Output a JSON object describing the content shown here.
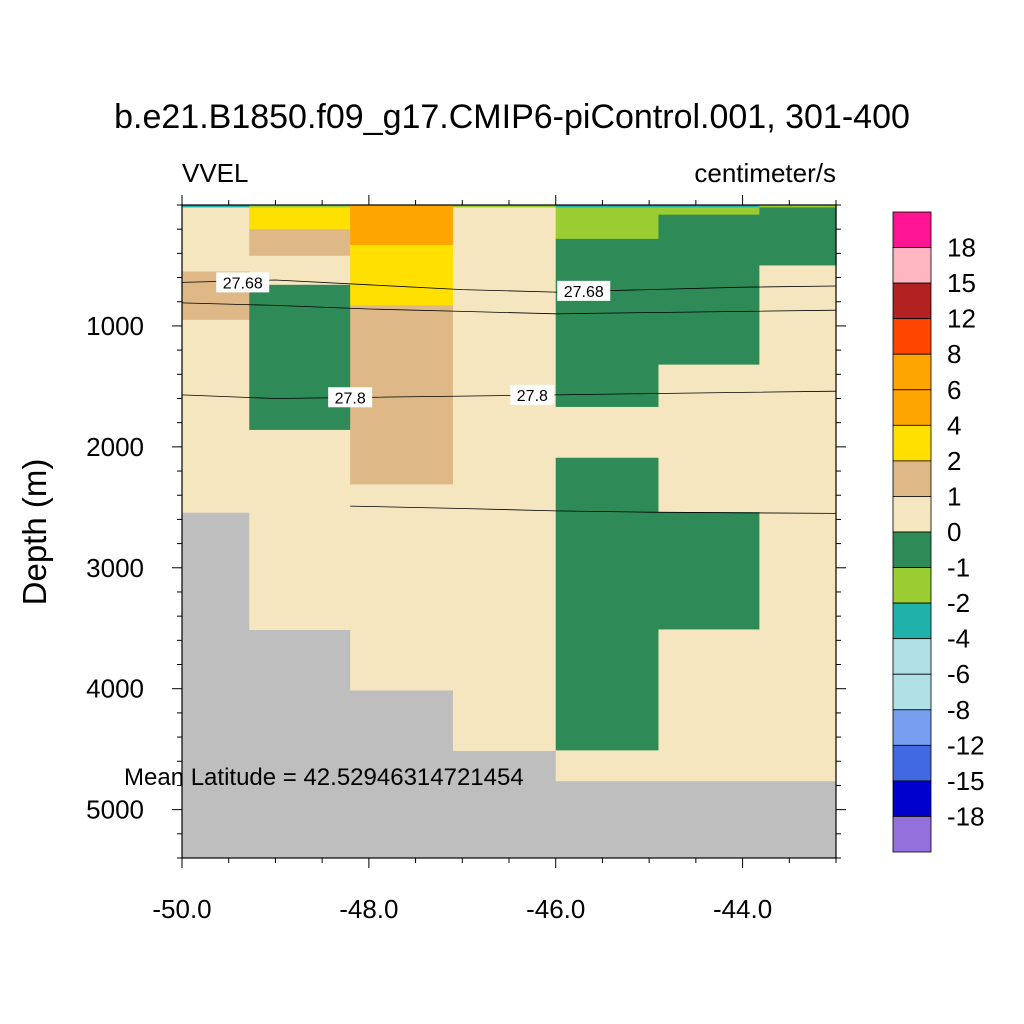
{
  "chart_data": {
    "type": "heatmap",
    "title": "b.e21.B1850.f09_g17.CMIP6-piControl.001, 301-400",
    "left_string": "VVEL",
    "right_string": "centimeter/s",
    "xlabel": "",
    "ylabel": "Depth (m)",
    "xlim": [
      -50.0,
      -43.0
    ],
    "ylim": [
      0,
      5400
    ],
    "y_reversed": true,
    "xticks": [
      -50.0,
      -48.0,
      -46.0,
      -44.0
    ],
    "xtick_labels": [
      "-50.0",
      "-48.0",
      "-46.0",
      "-44.0"
    ],
    "yticks": [
      1000,
      2000,
      3000,
      4000,
      5000
    ],
    "ytick_labels": [
      "1000",
      "2000",
      "3000",
      "4000",
      "5000"
    ],
    "annotation": "Mean Latitude = 42.52946314721454",
    "missing_color": "#bebebe",
    "colorbar": {
      "labels": [
        "18",
        "15",
        "12",
        "8",
        "6",
        "4",
        "2",
        "1",
        "0",
        "-1",
        "-2",
        "-4",
        "-6",
        "-8",
        "-12",
        "-15",
        "-18"
      ],
      "colors": [
        "#ff1493",
        "#ffb6c1",
        "#b22222",
        "#ff4500",
        "#ffa500",
        "#ffa500",
        "#ffe000",
        "#deb887",
        "#f5e6c0",
        "#2e8b57",
        "#9acd32",
        "#20b2aa",
        "#b0e0e6",
        "#b0e0e6",
        "#789ef0",
        "#4169e1",
        "#0000cd",
        "#9370db"
      ]
    },
    "columns": [
      {
        "x0": -50.0,
        "x1": -49.28,
        "bottom": 2540,
        "cells": [
          [
            0,
            20,
            -4
          ],
          [
            20,
            550,
            0
          ],
          [
            550,
            950,
            1
          ],
          [
            950,
            2540,
            0
          ]
        ]
      },
      {
        "x0": -49.28,
        "x1": -48.2,
        "bottom": 3510,
        "cells": [
          [
            0,
            20,
            -2
          ],
          [
            20,
            200,
            2
          ],
          [
            200,
            420,
            1
          ],
          [
            420,
            660,
            0
          ],
          [
            660,
            1860,
            -1
          ],
          [
            1860,
            3510,
            0
          ]
        ]
      },
      {
        "x0": -48.2,
        "x1": -47.1,
        "bottom": 4010,
        "cells": [
          [
            0,
            330,
            4
          ],
          [
            330,
            830,
            2
          ],
          [
            830,
            2310,
            1
          ],
          [
            2310,
            4010,
            0
          ]
        ]
      },
      {
        "x0": -47.1,
        "x1": -46.0,
        "bottom": 4510,
        "cells": [
          [
            0,
            20,
            -2
          ],
          [
            20,
            4510,
            0
          ]
        ]
      },
      {
        "x0": -46.0,
        "x1": -44.9,
        "bottom": 4760,
        "cells": [
          [
            0,
            20,
            -4
          ],
          [
            20,
            280,
            -2
          ],
          [
            280,
            1670,
            -1
          ],
          [
            1670,
            2090,
            0
          ],
          [
            2090,
            4510,
            -1
          ],
          [
            4510,
            4760,
            0
          ]
        ]
      },
      {
        "x0": -44.9,
        "x1": -43.82,
        "bottom": 4760,
        "cells": [
          [
            0,
            20,
            -4
          ],
          [
            20,
            80,
            -2
          ],
          [
            80,
            1320,
            -1
          ],
          [
            1320,
            2540,
            0
          ],
          [
            2540,
            3510,
            -1
          ],
          [
            3510,
            4760,
            0
          ]
        ]
      },
      {
        "x0": -43.82,
        "x1": -43.0,
        "bottom": 4760,
        "cells": [
          [
            0,
            20,
            -2
          ],
          [
            20,
            500,
            -1
          ],
          [
            500,
            4760,
            0
          ]
        ]
      }
    ],
    "contours": [
      {
        "level": "27.68",
        "points": [
          [
            -50.0,
            640
          ],
          [
            -49.0,
            620
          ],
          [
            -48.0,
            660
          ],
          [
            -47.0,
            700
          ],
          [
            -46.0,
            720
          ],
          [
            -45.0,
            700
          ],
          [
            -44.0,
            680
          ],
          [
            -43.0,
            670
          ]
        ],
        "labels": [
          [
            -49.35,
            640
          ],
          [
            -45.7,
            710
          ]
        ]
      },
      {
        "level": "",
        "points": [
          [
            -50.0,
            810
          ],
          [
            -49.0,
            830
          ],
          [
            -48.0,
            860
          ],
          [
            -47.0,
            880
          ],
          [
            -46.0,
            900
          ],
          [
            -45.0,
            890
          ],
          [
            -44.0,
            880
          ],
          [
            -43.0,
            870
          ]
        ],
        "labels": []
      },
      {
        "level": "27.8",
        "points": [
          [
            -50.0,
            1570
          ],
          [
            -49.0,
            1600
          ],
          [
            -48.0,
            1590
          ],
          [
            -47.0,
            1580
          ],
          [
            -46.0,
            1570
          ],
          [
            -45.0,
            1560
          ],
          [
            -44.0,
            1550
          ],
          [
            -43.0,
            1540
          ]
        ],
        "labels": [
          [
            -48.2,
            1590
          ],
          [
            -46.25,
            1570
          ]
        ]
      },
      {
        "level": "",
        "points": [
          [
            -48.2,
            2490
          ],
          [
            -47.0,
            2510
          ],
          [
            -46.0,
            2530
          ],
          [
            -45.0,
            2540
          ],
          [
            -44.0,
            2545
          ],
          [
            -43.0,
            2550
          ]
        ],
        "labels": []
      }
    ]
  }
}
